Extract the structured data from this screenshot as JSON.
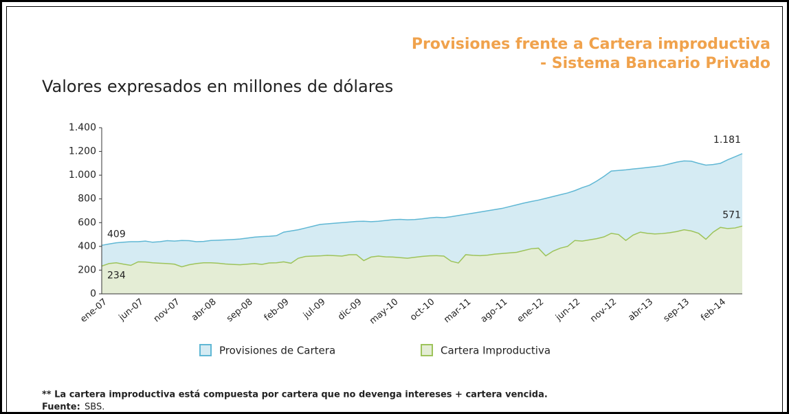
{
  "chart_data": {
    "type": "area",
    "title": "Provisiones frente a Cartera improductiva",
    "subtitle": "- Sistema Bancario Privado",
    "y_label": "Valores expresados en millones de dólares",
    "categories": [
      "ene-07",
      null,
      null,
      null,
      null,
      "jun-07",
      null,
      null,
      null,
      null,
      "nov-07",
      null,
      null,
      null,
      null,
      "abr-08",
      null,
      null,
      null,
      null,
      "sep-08",
      null,
      null,
      null,
      null,
      "feb-09",
      null,
      null,
      null,
      null,
      "jul-09",
      null,
      null,
      null,
      null,
      "dic-09",
      null,
      null,
      null,
      null,
      "may-10",
      null,
      null,
      null,
      null,
      "oct-10",
      null,
      null,
      null,
      null,
      "mar-11",
      null,
      null,
      null,
      null,
      "ago-11",
      null,
      null,
      null,
      null,
      "ene-12",
      null,
      null,
      null,
      null,
      "jun-12",
      null,
      null,
      null,
      null,
      "nov-12",
      null,
      null,
      null,
      null,
      "abr-13",
      null,
      null,
      null,
      null,
      "sep-13",
      null,
      null,
      null,
      null,
      "feb-14",
      null,
      null,
      null
    ],
    "series": [
      {
        "name": "Provisiones de Cartera",
        "color": "#5fb7d4",
        "fill": "#d5ebf3",
        "values": [
          409,
          420,
          430,
          435,
          440,
          440,
          445,
          435,
          440,
          448,
          445,
          450,
          448,
          440,
          442,
          450,
          452,
          455,
          458,
          462,
          470,
          478,
          482,
          485,
          490,
          520,
          530,
          540,
          555,
          570,
          585,
          590,
          595,
          600,
          605,
          610,
          612,
          608,
          612,
          618,
          625,
          628,
          624,
          626,
          632,
          640,
          645,
          642,
          650,
          660,
          670,
          680,
          690,
          700,
          710,
          720,
          735,
          750,
          765,
          778,
          790,
          805,
          820,
          835,
          850,
          870,
          895,
          915,
          950,
          990,
          1035,
          1040,
          1045,
          1052,
          1058,
          1065,
          1072,
          1080,
          1095,
          1110,
          1120,
          1118,
          1100,
          1085,
          1090,
          1100,
          1130,
          1155,
          1181
        ],
        "value_labels": [
          "409",
          null,
          null,
          null,
          null,
          null,
          null,
          null,
          null,
          null,
          null,
          null,
          null,
          null,
          null,
          null,
          null,
          null,
          null,
          null,
          null,
          null,
          null,
          null,
          null,
          null,
          null,
          null,
          null,
          null,
          null,
          null,
          null,
          null,
          null,
          null,
          null,
          null,
          null,
          null,
          null,
          null,
          null,
          null,
          null,
          null,
          null,
          null,
          null,
          null,
          null,
          null,
          null,
          null,
          null,
          null,
          null,
          null,
          null,
          null,
          null,
          null,
          null,
          null,
          null,
          null,
          null,
          null,
          null,
          null,
          null,
          null,
          null,
          null,
          null,
          null,
          null,
          null,
          null,
          null,
          null,
          null,
          null,
          null,
          null,
          null,
          null,
          null,
          "1.181"
        ]
      },
      {
        "name": "Cartera Improductiva",
        "color": "#9dc35a",
        "fill": "#e4edd5",
        "values": [
          234,
          255,
          262,
          250,
          240,
          270,
          268,
          262,
          258,
          255,
          250,
          228,
          245,
          255,
          262,
          262,
          258,
          252,
          248,
          245,
          250,
          255,
          248,
          260,
          262,
          270,
          258,
          300,
          315,
          318,
          320,
          325,
          322,
          318,
          330,
          330,
          280,
          310,
          318,
          312,
          310,
          305,
          300,
          308,
          315,
          320,
          322,
          318,
          275,
          260,
          330,
          325,
          322,
          326,
          335,
          340,
          345,
          350,
          365,
          380,
          385,
          320,
          360,
          385,
          400,
          450,
          445,
          455,
          465,
          480,
          510,
          500,
          450,
          495,
          520,
          510,
          505,
          508,
          515,
          525,
          540,
          530,
          510,
          460,
          520,
          560,
          550,
          555,
          571
        ],
        "value_labels": [
          "234",
          null,
          null,
          null,
          null,
          null,
          null,
          null,
          null,
          null,
          null,
          null,
          null,
          null,
          null,
          null,
          null,
          null,
          null,
          null,
          null,
          null,
          null,
          null,
          null,
          null,
          null,
          null,
          null,
          null,
          null,
          null,
          null,
          null,
          null,
          null,
          null,
          null,
          null,
          null,
          null,
          null,
          null,
          null,
          null,
          null,
          null,
          null,
          null,
          null,
          null,
          null,
          null,
          null,
          null,
          null,
          null,
          null,
          null,
          null,
          null,
          null,
          null,
          null,
          null,
          null,
          null,
          null,
          null,
          null,
          null,
          null,
          null,
          null,
          null,
          null,
          null,
          null,
          null,
          null,
          null,
          null,
          null,
          null,
          null,
          null,
          null,
          null,
          "571"
        ]
      }
    ],
    "ylim": [
      0,
      1400
    ],
    "yticks": [
      0,
      200,
      400,
      600,
      800,
      {
        "value": 1000,
        "label": "1.000"
      },
      {
        "value": 1200,
        "label": "1.200"
      },
      {
        "value": 1400,
        "label": "1.400"
      }
    ],
    "legend": "bottom",
    "note": "** La cartera improductiva está compuesta por cartera que no devenga intereses + cartera vencida.",
    "source_label": "Fuente:",
    "source": "SBS."
  }
}
